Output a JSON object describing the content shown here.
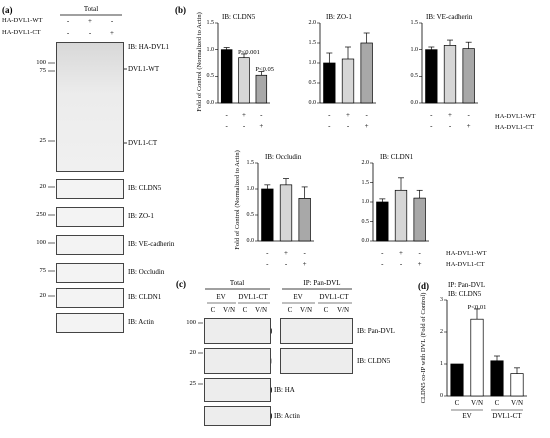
{
  "panel_a": {
    "letter": "(a)",
    "header": "Total",
    "row_labels": [
      "HA-DVL1-WT",
      "HA-DVL1-CT"
    ],
    "signs": [
      [
        "-",
        "+",
        "-"
      ],
      [
        "-",
        "-",
        "+"
      ]
    ],
    "ib_ha": "IB: HA-DVL1",
    "arrow_wt": "DVL1-WT",
    "arrow_ct": "DVL1-CT",
    "mw_ha": [
      "100",
      "75",
      "25"
    ],
    "blots": [
      {
        "mw": "20",
        "label": "IB: CLDN5"
      },
      {
        "mw": "250",
        "label": "IB: ZO-1"
      },
      {
        "mw": "100",
        "label": "IB: VE-cadherin"
      },
      {
        "mw": "75",
        "label": "IB: Occludin"
      },
      {
        "mw": "20",
        "label": "IB: CLDN1"
      },
      {
        "mw": "",
        "label": "IB: Actin"
      }
    ]
  },
  "panel_b": {
    "letter": "(b)",
    "row_labels": [
      "HA-DVL1-WT",
      "HA-DVL1-CT"
    ],
    "signs": [
      [
        "-",
        "+",
        "-"
      ],
      [
        "-",
        "-",
        "+"
      ]
    ]
  },
  "panel_c": {
    "letter": "(c)",
    "total": "Total",
    "ip": "IP: Pan-DVL",
    "groups": [
      "EV",
      "DVL1-CT",
      "EV",
      "DVL1-CT"
    ],
    "lanes": [
      "C",
      "V/N",
      "C",
      "V/N",
      "C",
      "V/N",
      "C",
      "V/N"
    ],
    "mw": [
      "100",
      "20",
      "25"
    ],
    "blots": [
      "IB: Pan-DVL",
      "IB: CLDN5",
      "IB: HA",
      "IB: Actin"
    ]
  },
  "panel_d": {
    "letter": "(d)",
    "title1": "IP: Pan-DVL",
    "title2": "IB: CLDN5",
    "group_labels": [
      "EV",
      "DVL1-CT"
    ],
    "lane_labels": [
      "C",
      "V/N",
      "C",
      "V/N"
    ]
  },
  "chart_data": [
    {
      "type": "bar",
      "title": "IB: CLDN5",
      "ylabel": "Fold of Control (Normalized to Actin)",
      "ylim": [
        0,
        1.5
      ],
      "yticks": [
        0,
        0.5,
        1.0,
        1.5
      ],
      "values": [
        1.0,
        0.85,
        0.52
      ],
      "errors": [
        0.04,
        0.07,
        0.07
      ],
      "annotations": [
        "P<0.001",
        "P<0.05"
      ]
    },
    {
      "type": "bar",
      "title": "IB: ZO-1",
      "ylim": [
        0,
        2.0
      ],
      "yticks": [
        0,
        0.5,
        1.0,
        1.5,
        2.0
      ],
      "values": [
        1.0,
        1.1,
        1.5
      ],
      "errors": [
        0.25,
        0.3,
        0.25
      ]
    },
    {
      "type": "bar",
      "title": "IB: VE-cadherin",
      "ylim": [
        0,
        1.5
      ],
      "yticks": [
        0,
        0.5,
        1.0,
        1.5
      ],
      "values": [
        1.0,
        1.08,
        1.02
      ],
      "errors": [
        0.05,
        0.1,
        0.12
      ]
    },
    {
      "type": "bar",
      "title": "IB: Occludin",
      "ylabel": "Fold of Control (Normalized to Actin)",
      "ylim": [
        0,
        1.5
      ],
      "yticks": [
        0,
        0.5,
        1.0,
        1.5
      ],
      "values": [
        1.0,
        1.08,
        0.82
      ],
      "errors": [
        0.08,
        0.12,
        0.22
      ]
    },
    {
      "type": "bar",
      "title": "IB: CLDN1",
      "ylim": [
        0,
        2.0
      ],
      "yticks": [
        0,
        0.5,
        1.0,
        1.5,
        2.0
      ],
      "values": [
        1.0,
        1.3,
        1.1
      ],
      "errors": [
        0.08,
        0.32,
        0.2
      ]
    },
    {
      "type": "bar",
      "ylabel": "CLDN5 co-IP with DVL (Fold of Control)",
      "ylim": [
        0,
        3
      ],
      "yticks": [
        0,
        1,
        2,
        3
      ],
      "values": [
        1.0,
        2.4,
        1.1,
        0.7
      ],
      "errors": [
        0,
        0.32,
        0.15,
        0.18
      ],
      "annotations": [
        "P<0.01"
      ]
    }
  ]
}
